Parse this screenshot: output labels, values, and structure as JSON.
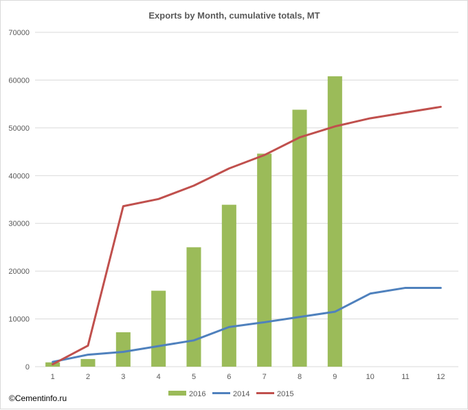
{
  "chart_data": {
    "type": "bar",
    "title": "Exports by Month, cumulative totals, MT",
    "xlabel": "",
    "ylabel": "",
    "categories": [
      "1",
      "2",
      "3",
      "4",
      "5",
      "6",
      "7",
      "8",
      "9",
      "10",
      "11",
      "12"
    ],
    "ylim": [
      0,
      70000
    ],
    "yticks": [
      0,
      10000,
      20000,
      30000,
      40000,
      50000,
      60000,
      70000
    ],
    "grid": true,
    "legend_position": "bottom",
    "series": [
      {
        "name": "2016",
        "kind": "bar",
        "color": "#9bbb59",
        "values": [
          900,
          1600,
          7200,
          15900,
          25000,
          33900,
          44600,
          53800,
          60800,
          null,
          null,
          null
        ]
      },
      {
        "name": "2014",
        "kind": "line",
        "color": "#4f81bd",
        "values": [
          1000,
          2500,
          3100,
          4300,
          5500,
          8300,
          9300,
          10400,
          11500,
          15300,
          16500,
          16500
        ]
      },
      {
        "name": "2015",
        "kind": "line",
        "color": "#c0504d",
        "values": [
          500,
          4400,
          33600,
          35100,
          37900,
          41500,
          44300,
          48000,
          50300,
          52000,
          53200,
          54400
        ]
      }
    ]
  },
  "copyright": "©Cementinfo.ru"
}
